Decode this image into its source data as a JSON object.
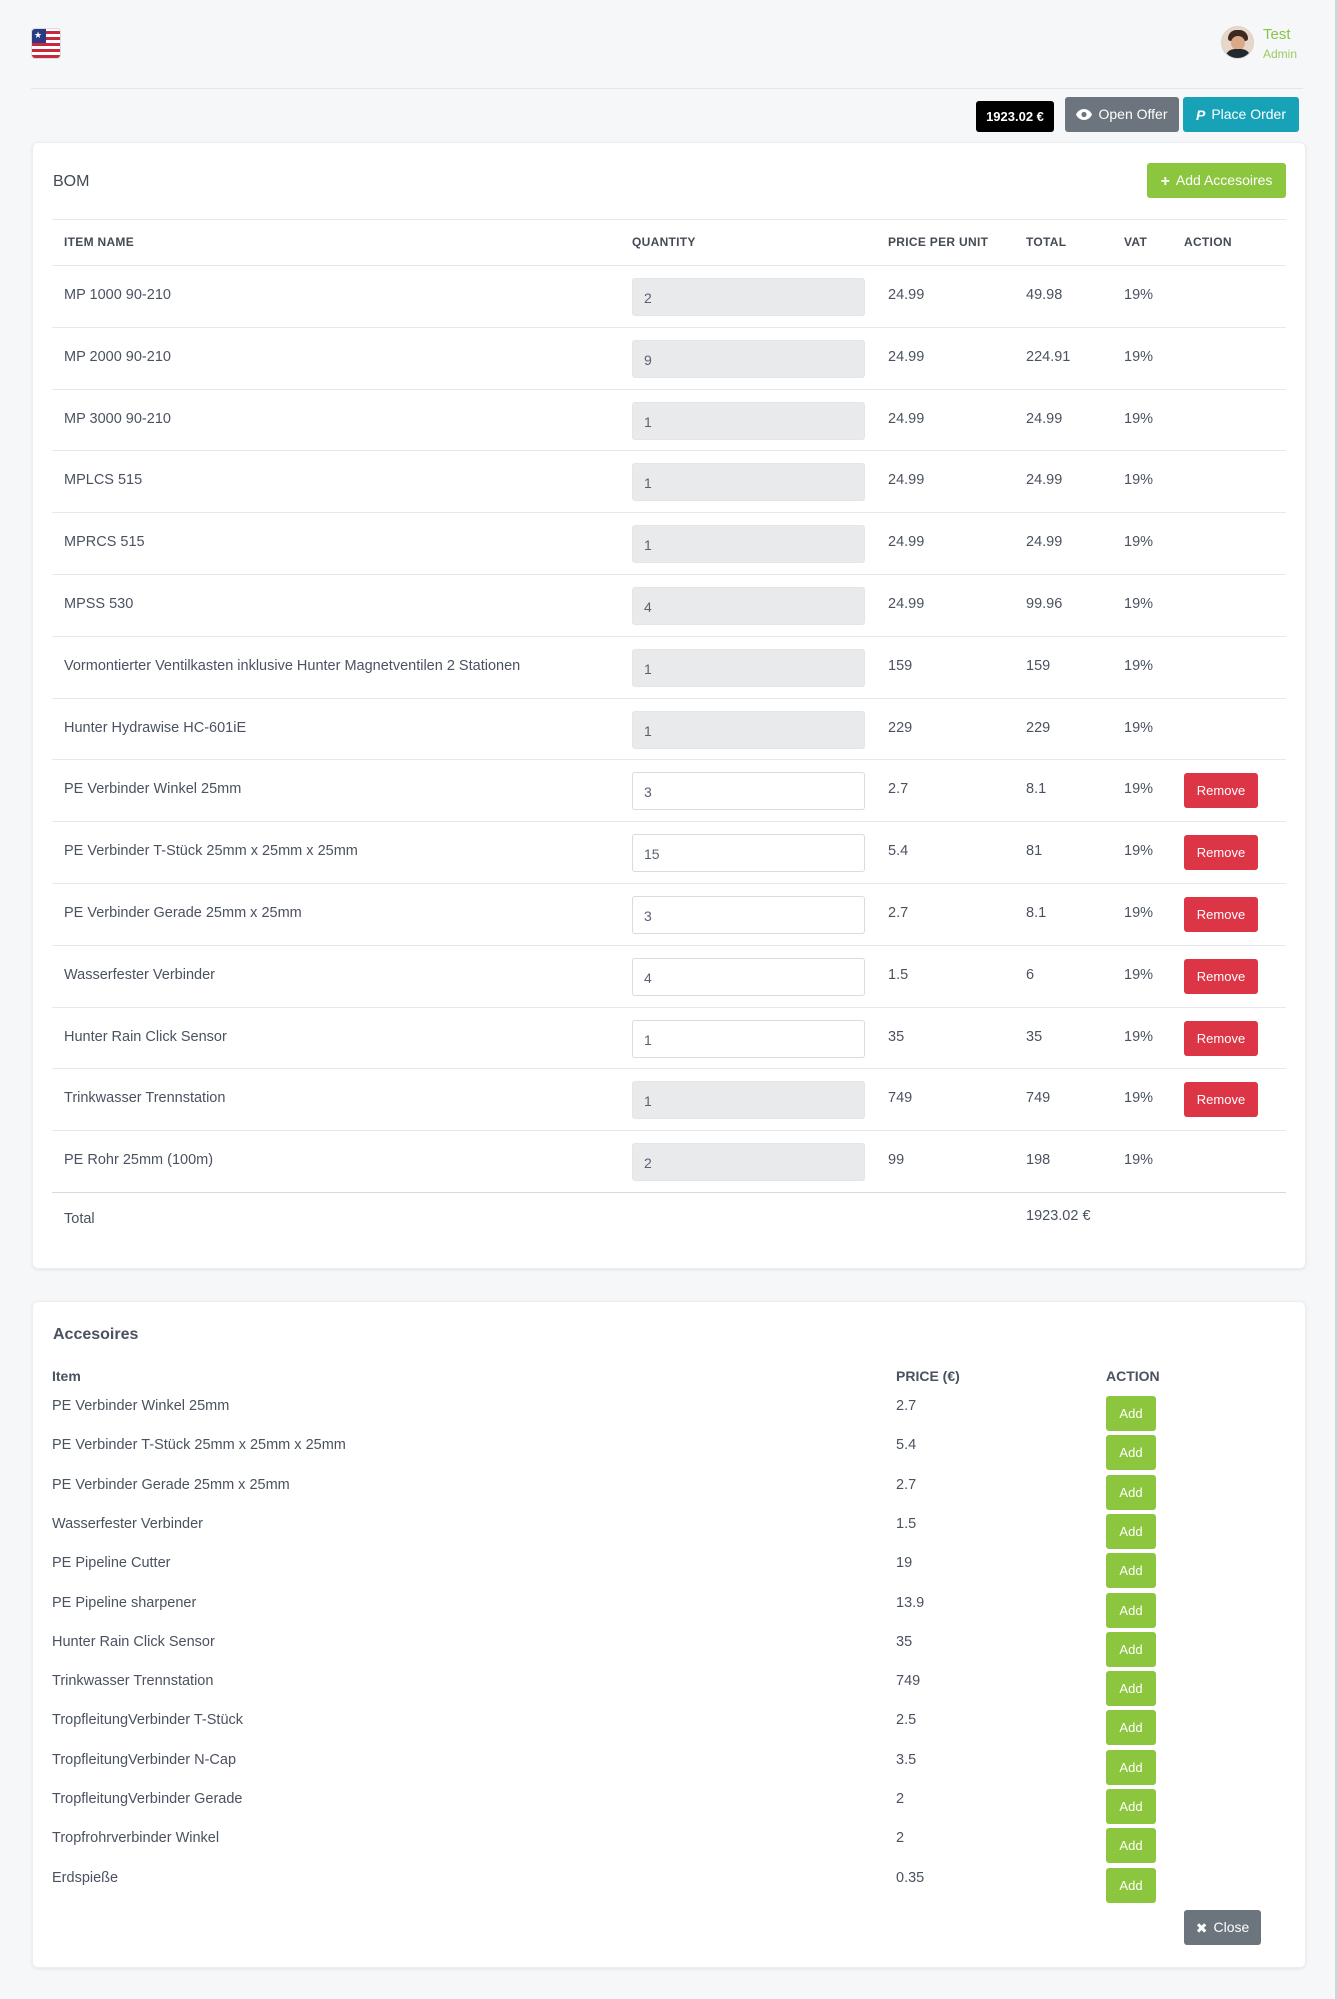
{
  "header": {
    "flag_icon": "us-flag-icon",
    "user_name": "Test",
    "user_role": "Admin"
  },
  "toolbar": {
    "total_badge": "1923.02 €",
    "open_offer_label": "Open Offer",
    "place_order_label": "Place Order"
  },
  "bom": {
    "title": "BOM",
    "add_accessories_label": "Add Accesoires",
    "columns": {
      "item_name": "ITEM NAME",
      "quantity": "QUANTITY",
      "price_per_unit": "PRICE PER UNIT",
      "total": "TOTAL",
      "vat": "VAT",
      "action": "ACTION"
    },
    "rows": [
      {
        "name": "MP 1000 90-210",
        "qty": "2",
        "price": "24.99",
        "total": "49.98",
        "vat": "19%",
        "editable": false,
        "action": ""
      },
      {
        "name": "MP 2000 90-210",
        "qty": "9",
        "price": "24.99",
        "total": "224.91",
        "vat": "19%",
        "editable": false,
        "action": ""
      },
      {
        "name": "MP 3000 90-210",
        "qty": "1",
        "price": "24.99",
        "total": "24.99",
        "vat": "19%",
        "editable": false,
        "action": ""
      },
      {
        "name": "MPLCS 515",
        "qty": "1",
        "price": "24.99",
        "total": "24.99",
        "vat": "19%",
        "editable": false,
        "action": ""
      },
      {
        "name": "MPRCS 515",
        "qty": "1",
        "price": "24.99",
        "total": "24.99",
        "vat": "19%",
        "editable": false,
        "action": ""
      },
      {
        "name": "MPSS 530",
        "qty": "4",
        "price": "24.99",
        "total": "99.96",
        "vat": "19%",
        "editable": false,
        "action": ""
      },
      {
        "name": "Vormontierter Ventilkasten inklusive Hunter Magnetventilen 2 Stationen",
        "qty": "1",
        "price": "159",
        "total": "159",
        "vat": "19%",
        "editable": false,
        "action": ""
      },
      {
        "name": "Hunter Hydrawise HC-601iE",
        "qty": "1",
        "price": "229",
        "total": "229",
        "vat": "19%",
        "editable": false,
        "action": ""
      },
      {
        "name": "PE Verbinder Winkel 25mm",
        "qty": "3",
        "price": "2.7",
        "total": "8.1",
        "vat": "19%",
        "editable": true,
        "action": "Remove"
      },
      {
        "name": "PE Verbinder T-Stück 25mm x 25mm x 25mm",
        "qty": "15",
        "price": "5.4",
        "total": "81",
        "vat": "19%",
        "editable": true,
        "action": "Remove"
      },
      {
        "name": "PE Verbinder Gerade 25mm x 25mm",
        "qty": "3",
        "price": "2.7",
        "total": "8.1",
        "vat": "19%",
        "editable": true,
        "action": "Remove"
      },
      {
        "name": "Wasserfester Verbinder",
        "qty": "4",
        "price": "1.5",
        "total": "6",
        "vat": "19%",
        "editable": true,
        "action": "Remove"
      },
      {
        "name": "Hunter Rain Click Sensor",
        "qty": "1",
        "price": "35",
        "total": "35",
        "vat": "19%",
        "editable": true,
        "action": "Remove"
      },
      {
        "name": "Trinkwasser Trennstation",
        "qty": "1",
        "price": "749",
        "total": "749",
        "vat": "19%",
        "editable": false,
        "action": "Remove"
      },
      {
        "name": "PE Rohr 25mm (100m)",
        "qty": "2",
        "price": "99",
        "total": "198",
        "vat": "19%",
        "editable": false,
        "action": ""
      }
    ],
    "total_label": "Total",
    "total_value": "1923.02 €"
  },
  "accessories": {
    "title": "Accesoires",
    "columns": {
      "item": "Item",
      "price": "PRICE (€)",
      "action": "ACTION"
    },
    "add_label": "Add",
    "items": [
      {
        "name": "PE Verbinder Winkel 25mm",
        "price": "2.7"
      },
      {
        "name": "PE Verbinder T-Stück 25mm x 25mm x 25mm",
        "price": "5.4"
      },
      {
        "name": "PE Verbinder Gerade 25mm x 25mm",
        "price": "2.7"
      },
      {
        "name": "Wasserfester Verbinder",
        "price": "1.5"
      },
      {
        "name": "PE Pipeline Cutter",
        "price": "19"
      },
      {
        "name": "PE Pipeline sharpener",
        "price": "13.9"
      },
      {
        "name": "Hunter Rain Click Sensor",
        "price": "35"
      },
      {
        "name": "Trinkwasser Trennstation",
        "price": "749"
      },
      {
        "name": "TropfleitungVerbinder T-Stück",
        "price": "2.5"
      },
      {
        "name": "TropfleitungVerbinder N-Cap",
        "price": "3.5"
      },
      {
        "name": "TropfleitungVerbinder Gerade",
        "price": "2"
      },
      {
        "name": "Tropfrohrverbinder Winkel",
        "price": "2"
      },
      {
        "name": "Erdspieße",
        "price": "0.35"
      }
    ],
    "close_label": "Close"
  },
  "colors": {
    "accent_green": "#8cc63f",
    "teal": "#17a2b8",
    "grey": "#6c757d",
    "danger": "#dc3545"
  }
}
